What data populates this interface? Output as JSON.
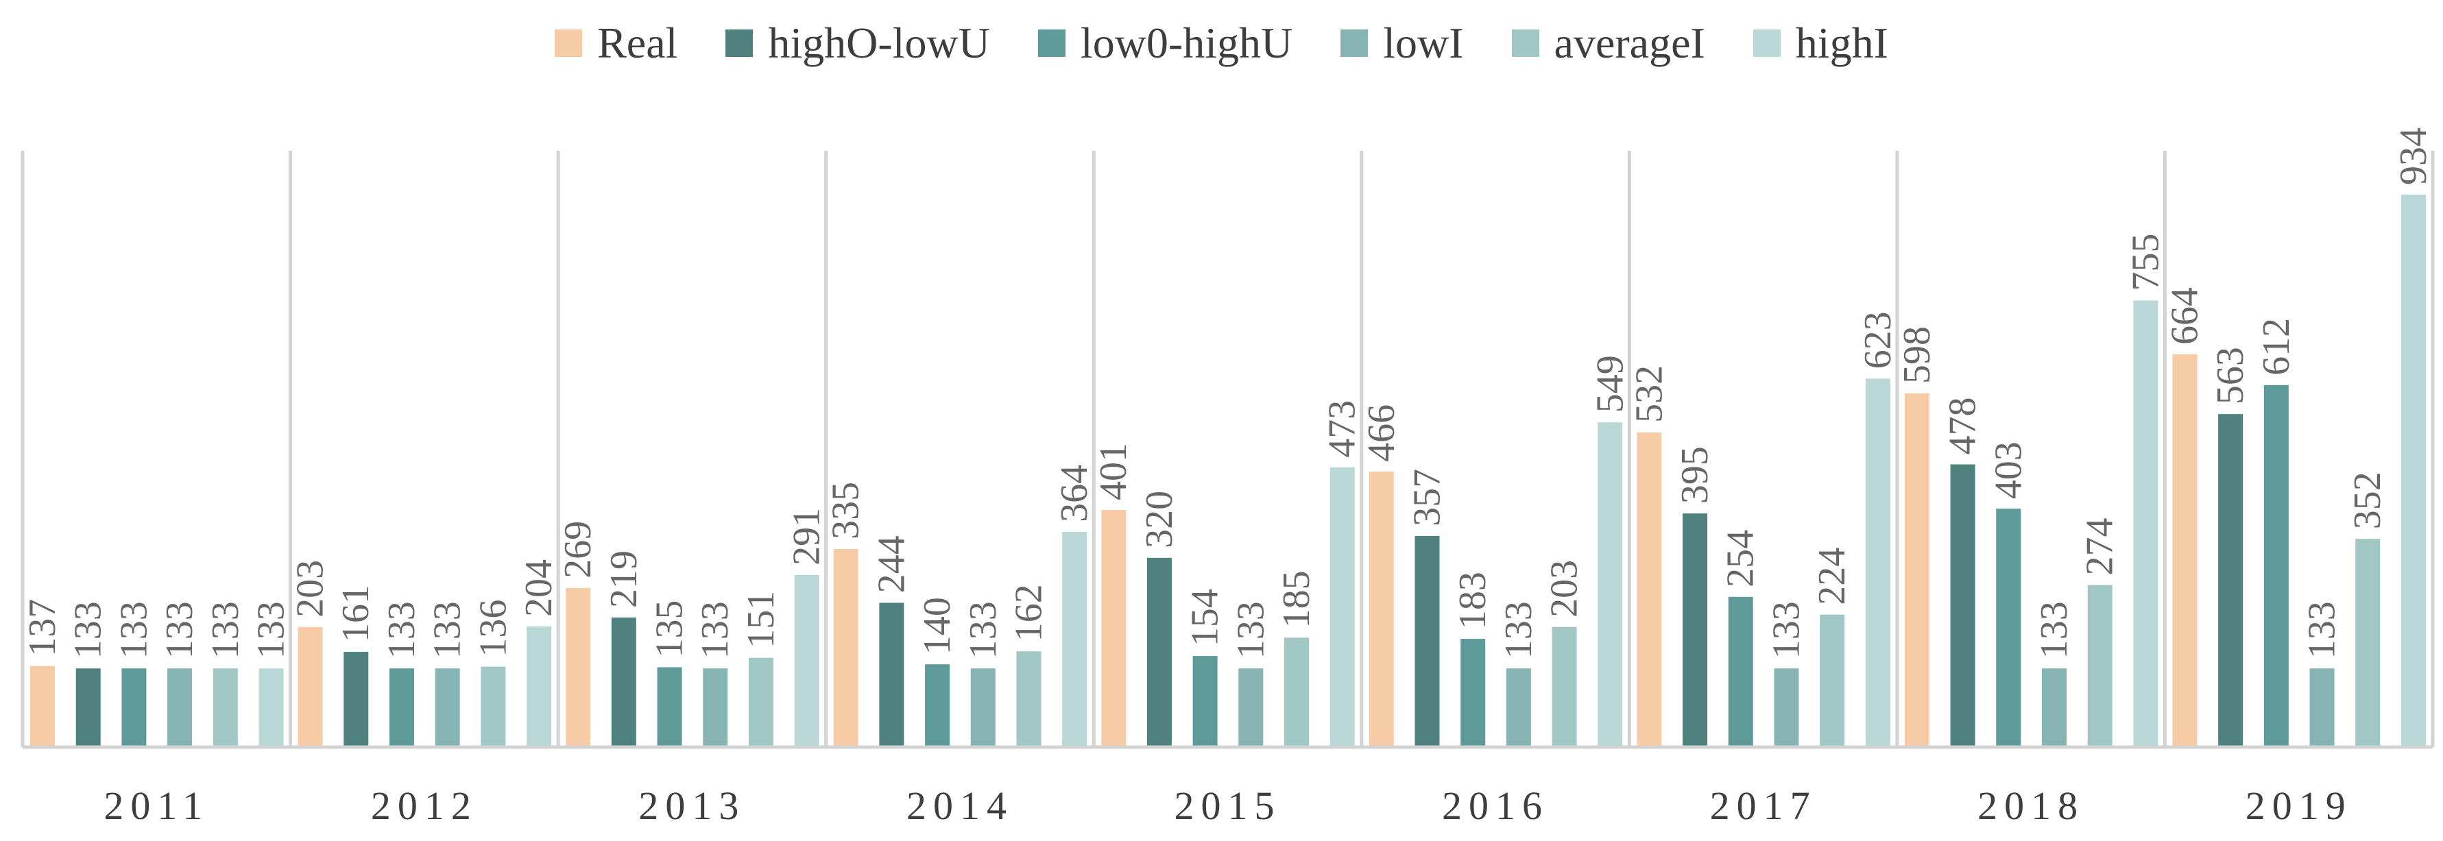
{
  "chart_data": {
    "type": "bar",
    "categories": [
      "2011",
      "2012",
      "2013",
      "2014",
      "2015",
      "2016",
      "2017",
      "2018",
      "2019"
    ],
    "series": [
      {
        "name": "Real",
        "color": "#f8cba7",
        "values": [
          137,
          203,
          269,
          335,
          401,
          466,
          532,
          598,
          664
        ]
      },
      {
        "name": "highO-lowU",
        "color": "#4f817f",
        "values": [
          133,
          161,
          219,
          244,
          320,
          357,
          395,
          478,
          563
        ]
      },
      {
        "name": "low0-highU",
        "color": "#5e9a99",
        "values": [
          133,
          133,
          135,
          140,
          154,
          183,
          254,
          403,
          612
        ]
      },
      {
        "name": "lowI",
        "color": "#86b4b2",
        "values": [
          133,
          133,
          133,
          133,
          133,
          133,
          133,
          133,
          133
        ]
      },
      {
        "name": "averageI",
        "color": "#a1c7c5",
        "values": [
          133,
          136,
          151,
          162,
          185,
          203,
          224,
          274,
          352
        ]
      },
      {
        "name": "highI",
        "color": "#b9d7d5",
        "values": [
          133,
          204,
          291,
          364,
          473,
          549,
          623,
          755,
          934
        ]
      }
    ],
    "ylim": [
      0,
      1000
    ],
    "data_labels": true,
    "legend": "top-center",
    "grid": false
  }
}
